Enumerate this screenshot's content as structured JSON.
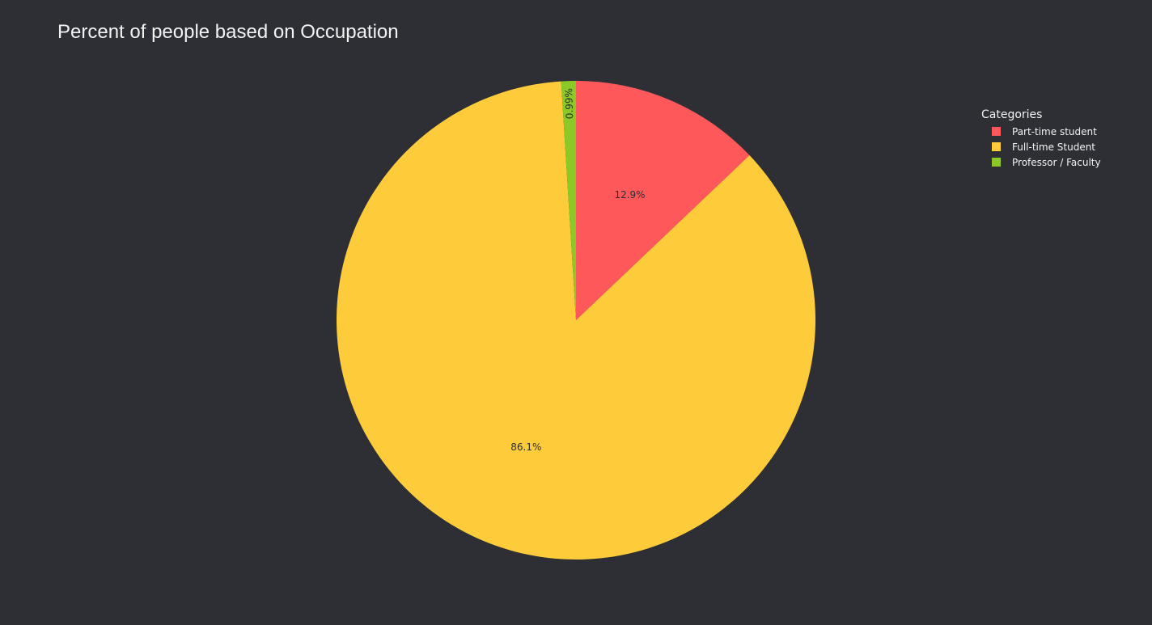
{
  "chart_data": {
    "type": "pie",
    "title": "Percent of people based on Occupation",
    "legend_title": "Categories",
    "legend_position": "top-right",
    "categories": [
      "Part-time student",
      "Full-time Student",
      "Professor / Faculty"
    ],
    "values": [
      12.9,
      86.1,
      0.99
    ],
    "labels": [
      "12.9%",
      "86.1%",
      "0.99%"
    ],
    "colors": [
      "#fe585a",
      "#fecb3b",
      "#8dc926"
    ],
    "direction": "clockwise",
    "start_angle": "top"
  }
}
